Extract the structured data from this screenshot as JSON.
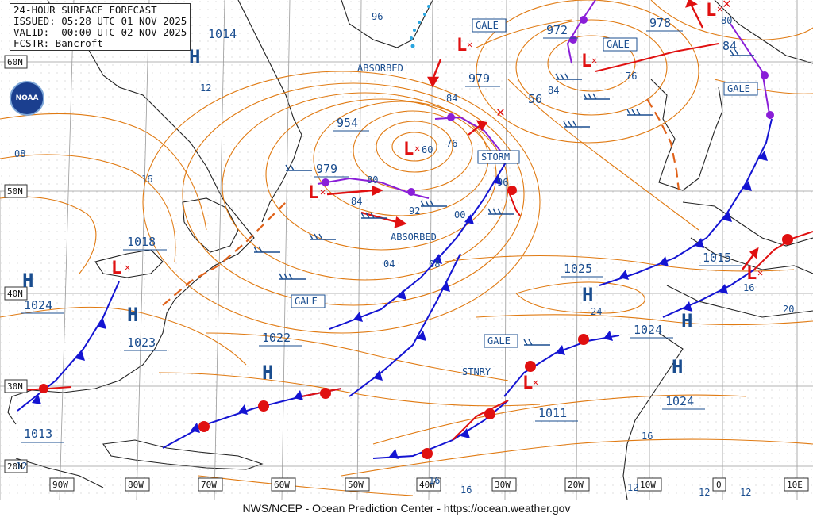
{
  "header": {
    "title": "24-HOUR SURFACE FORECAST",
    "issued": "ISSUED: 05:28 UTC 01 NOV 2025",
    "valid": "VALID:  00:00 UTC 02 NOV 2025",
    "forecaster": "FCSTR: Bancroft"
  },
  "footer": "NWS/NCEP - Ocean Prediction Center - https://ocean.weather.gov",
  "logo_text": "NOAA",
  "latitude_labels": [
    "60N",
    "50N",
    "40N",
    "30N",
    "20N"
  ],
  "longitude_labels": [
    "90W",
    "80W",
    "70W",
    "60W",
    "50W",
    "40W",
    "30W",
    "20W",
    "10W",
    "0",
    "10E"
  ],
  "high_centers": [
    {
      "label": "H",
      "pressure": "1014"
    },
    {
      "label": "H",
      "pressure": "1024"
    },
    {
      "label": "H",
      "pressure": "1023"
    },
    {
      "label": "H",
      "pressure": "1022"
    },
    {
      "label": "H",
      "pressure": "1025"
    },
    {
      "label": "H",
      "pressure": "1024"
    },
    {
      "label": "H",
      "pressure": "1024"
    },
    {
      "label": "H",
      "pressure": "1015"
    }
  ],
  "low_centers": [
    {
      "label": "L",
      "pressure": "1018"
    },
    {
      "label": "L",
      "pressure": "979"
    },
    {
      "label": "L",
      "pressure": "954"
    },
    {
      "label": "L",
      "pressure": "979"
    },
    {
      "label": "L",
      "pressure": "972"
    },
    {
      "label": "L",
      "pressure": "978"
    },
    {
      "label": "L",
      "pressure": "1013"
    },
    {
      "label": "L",
      "pressure": "1011"
    }
  ],
  "warning_labels": [
    "GALE",
    "GALE",
    "GALE",
    "GALE",
    "STORM",
    "GALE"
  ],
  "annotations": [
    "ABSORBED",
    "ABSORBED",
    "STNRY"
  ],
  "isobar_labels": [
    "96",
    "12",
    "08",
    "16",
    "84",
    "60",
    "76",
    "56",
    "84",
    "76",
    "80",
    "84",
    "92",
    "00",
    "96",
    "04",
    "08",
    "24",
    "16",
    "20",
    "16",
    "12",
    "12",
    "12",
    "16",
    "16",
    "12",
    "80",
    "84"
  ],
  "colors": {
    "isobar": "#e07a12",
    "cold_front": "#1414d2",
    "warm_front": "#e01010",
    "occluded_front": "#8a1ed8",
    "trough": "#e0621a",
    "label_text": "#1a4d8f",
    "grid": "#9a9a9a",
    "land": "#222222",
    "wind_barb": "#1a4d8f"
  }
}
